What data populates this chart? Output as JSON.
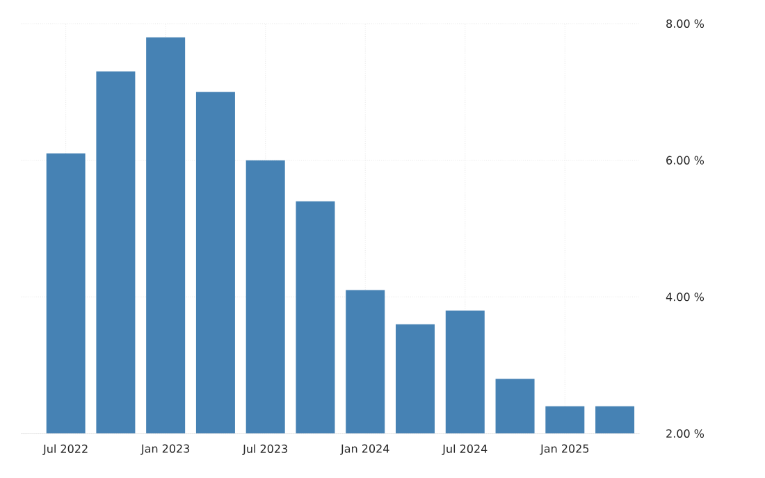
{
  "chart_data": {
    "type": "bar",
    "categories": [
      "Jul 2022",
      null,
      "Jan 2023",
      null,
      "Jul 2023",
      null,
      "Jan 2024",
      null,
      "Jul 2024",
      null,
      "Jan 2025",
      null
    ],
    "values": [
      6.1,
      7.3,
      7.8,
      7.0,
      6.0,
      5.4,
      4.1,
      3.6,
      3.8,
      2.8,
      2.4,
      2.4
    ],
    "color": "#4682b4",
    "ylim": [
      2,
      8
    ],
    "yticks": [
      {
        "value": 2,
        "label": "2.00 %"
      },
      {
        "value": 4,
        "label": "4.00 %"
      },
      {
        "value": 6,
        "label": "6.00 %"
      },
      {
        "value": 8,
        "label": "8.00 %"
      }
    ],
    "grid": true
  }
}
